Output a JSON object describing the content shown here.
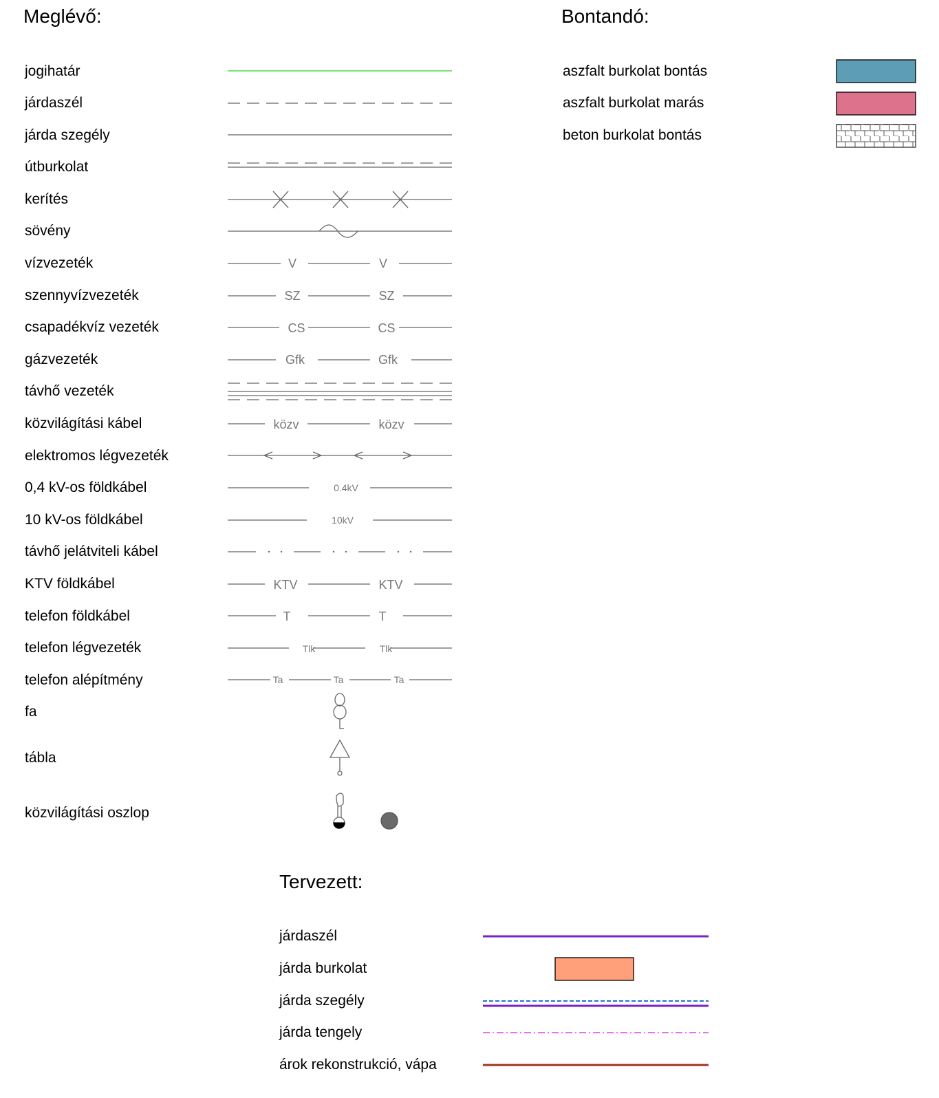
{
  "existing": {
    "heading": "Meglévő:",
    "items": [
      {
        "label": "jogihatár"
      },
      {
        "label": "járdaszél"
      },
      {
        "label": "járda szegély"
      },
      {
        "label": "útburkolat"
      },
      {
        "label": "kerítés"
      },
      {
        "label": "sövény"
      },
      {
        "label": "vízvezeték",
        "code": "V"
      },
      {
        "label": "szennyvízvezeték",
        "code": "SZ"
      },
      {
        "label": "csapadékvíz vezeték",
        "code": "CS"
      },
      {
        "label": "gázvezeték",
        "code": "Gfk"
      },
      {
        "label": "távhő vezeték"
      },
      {
        "label": "közvilágítási kábel",
        "code": "közv"
      },
      {
        "label": "elektromos légvezeték"
      },
      {
        "label": "0,4 kV-os földkábel",
        "code": "0.4kV"
      },
      {
        "label": "10 kV-os földkábel",
        "code": "10kV"
      },
      {
        "label": "távhő jelátviteli kábel"
      },
      {
        "label": "KTV földkábel",
        "code": "KTV"
      },
      {
        "label": "telefon földkábel",
        "code": "T"
      },
      {
        "label": "telefon légvezeték",
        "code": "Tlk"
      },
      {
        "label": "telefon alépítmény",
        "code": "Ta"
      },
      {
        "label": "fa"
      },
      {
        "label": "tábla"
      },
      {
        "label": "közvilágítási oszlop"
      }
    ]
  },
  "demolish": {
    "heading": "Bontandó:",
    "items": [
      {
        "label": "aszfalt burkolat bontás",
        "color": "#5d9db5"
      },
      {
        "label": "aszfalt burkolat marás",
        "color": "#dd728c"
      },
      {
        "label": "beton burkolat bontás",
        "color": "#ffffff"
      }
    ]
  },
  "planned": {
    "heading": "Tervezett:",
    "items": [
      {
        "label": "járdaszél",
        "color": "#7a22c8"
      },
      {
        "label": "járda burkolat",
        "color": "#ffa07a"
      },
      {
        "label": "járda szegély",
        "color": "#7a22c8",
        "color2": "#1e6fd9"
      },
      {
        "label": "járda tengely",
        "color": "#e040e8"
      },
      {
        "label": "árok rekonstrukció, vápa",
        "color": "#a3311e"
      }
    ]
  },
  "colors": {
    "boundary": "#22d822",
    "symbol": "#666666"
  }
}
